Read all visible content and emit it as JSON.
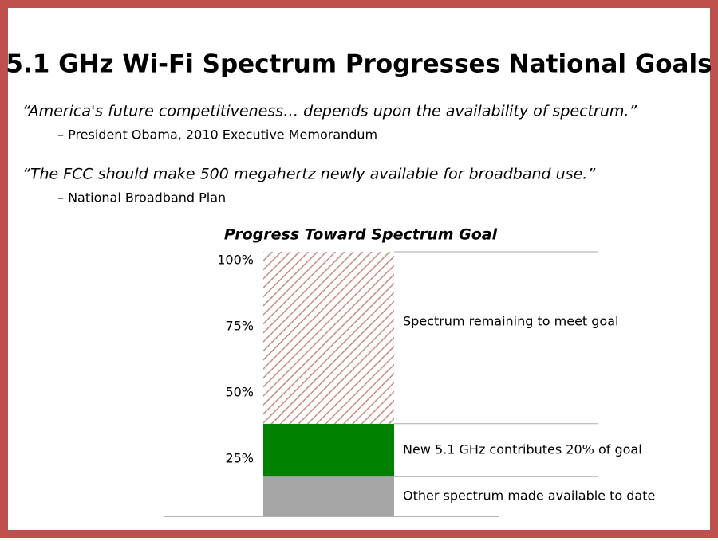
{
  "slide": {
    "title": "5.1 GHz Wi-Fi Spectrum Progresses National Goals",
    "quotes": [
      {
        "text": "“America's future competitiveness… depends upon the availability of spectrum.”",
        "attribution": "– President Obama, 2010 Executive Memorandum"
      },
      {
        "text": "“The FCC should make 500 megahertz newly available for broadband use.”",
        "attribution": "– National Broadband Plan"
      }
    ]
  },
  "chart_data": {
    "type": "bar",
    "stacked": true,
    "title": "Progress Toward Spectrum Goal",
    "categories": [
      null
    ],
    "series": [
      {
        "name": "Other spectrum made available to date",
        "color": "#a6a6a6",
        "values": [
          15
        ]
      },
      {
        "name": "New 5.1 GHz contributes 20% of goal",
        "color": "#008000",
        "values": [
          20
        ]
      },
      {
        "name": "Spectrum remaining to meet goal",
        "color": "#c98a88",
        "pattern": "diagonal-hatch",
        "values": [
          65
        ]
      }
    ],
    "ylim": [
      0,
      100
    ],
    "yticks": [
      {
        "value": 25,
        "label": "25%"
      },
      {
        "value": 50,
        "label": "50%"
      },
      {
        "value": 75,
        "label": "75%"
      },
      {
        "value": 100,
        "label": "100%"
      }
    ]
  }
}
